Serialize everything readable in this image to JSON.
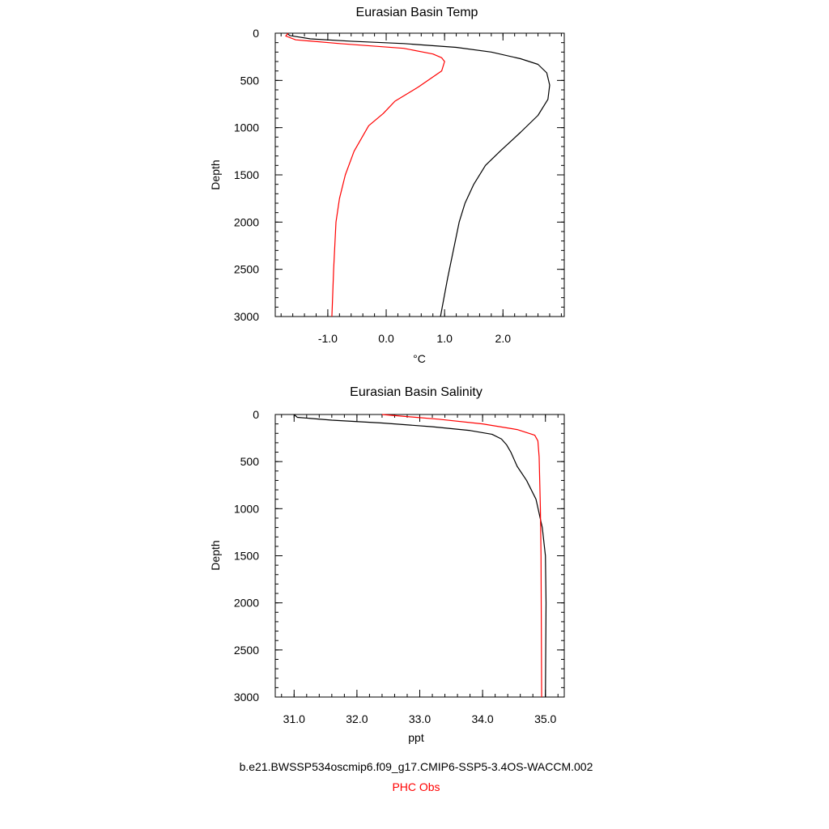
{
  "colors": {
    "model": "#000000",
    "obs": "#ff0000",
    "background": "#ffffff"
  },
  "legend": {
    "model_label": "b.e21.BWSSP534oscmip6.f09_g17.CMIP6-SSP5-3.4OS-WACCM.002",
    "obs_label": "PHC Obs"
  },
  "chart_data": [
    {
      "type": "line",
      "title": "Eurasian Basin Temp",
      "xlabel": "°C",
      "ylabel": "Depth",
      "xlim": [
        -1.9,
        3.05
      ],
      "ylim": [
        3000,
        0
      ],
      "xticks": [
        -1.0,
        0.0,
        1.0,
        2.0
      ],
      "xtick_labels": [
        "-1.0",
        "0.0",
        "1.0",
        "2.0"
      ],
      "xminor_step": 0.2,
      "yticks": [
        0,
        500,
        1000,
        1500,
        2000,
        2500,
        3000
      ],
      "ytick_labels": [
        "0",
        "500",
        "1000",
        "1500",
        "2000",
        "2500",
        "3000"
      ],
      "yminor_step": 100,
      "grid": false,
      "series": [
        {
          "id": "model",
          "points": [
            [
              -1.7,
              0
            ],
            [
              -1.65,
              25
            ],
            [
              -1.3,
              60
            ],
            [
              -0.6,
              85
            ],
            [
              0.3,
              110
            ],
            [
              1.2,
              150
            ],
            [
              1.8,
              200
            ],
            [
              2.3,
              270
            ],
            [
              2.6,
              330
            ],
            [
              2.75,
              420
            ],
            [
              2.8,
              550
            ],
            [
              2.77,
              700
            ],
            [
              2.6,
              870
            ],
            [
              2.3,
              1050
            ],
            [
              1.95,
              1250
            ],
            [
              1.7,
              1400
            ],
            [
              1.5,
              1600
            ],
            [
              1.35,
              1800
            ],
            [
              1.25,
              2000
            ],
            [
              1.15,
              2300
            ],
            [
              1.05,
              2600
            ],
            [
              0.93,
              3000
            ]
          ]
        },
        {
          "id": "obs",
          "points": [
            [
              -1.68,
              0
            ],
            [
              -1.72,
              30
            ],
            [
              -1.55,
              70
            ],
            [
              -0.8,
              110
            ],
            [
              0.3,
              160
            ],
            [
              0.8,
              220
            ],
            [
              0.95,
              260
            ],
            [
              1.0,
              300
            ],
            [
              0.95,
              400
            ],
            [
              0.55,
              570
            ],
            [
              0.15,
              720
            ],
            [
              -0.05,
              850
            ],
            [
              -0.3,
              980
            ],
            [
              -0.55,
              1250
            ],
            [
              -0.7,
              1500
            ],
            [
              -0.8,
              1750
            ],
            [
              -0.86,
              2000
            ],
            [
              -0.9,
              2500
            ],
            [
              -0.93,
              3000
            ]
          ]
        }
      ]
    },
    {
      "type": "line",
      "title": "Eurasian Basin Salinity",
      "xlabel": "ppt",
      "ylabel": "Depth",
      "xlim": [
        30.7,
        35.3
      ],
      "ylim": [
        3000,
        0
      ],
      "xticks": [
        31.0,
        32.0,
        33.0,
        34.0,
        35.0
      ],
      "xtick_labels": [
        "31.0",
        "32.0",
        "33.0",
        "34.0",
        "35.0"
      ],
      "xminor_step": 0.2,
      "yticks": [
        0,
        500,
        1000,
        1500,
        2000,
        2500,
        3000
      ],
      "ytick_labels": [
        "0",
        "500",
        "1000",
        "1500",
        "2000",
        "2500",
        "3000"
      ],
      "yminor_step": 100,
      "grid": false,
      "series": [
        {
          "id": "model",
          "points": [
            [
              31.0,
              0
            ],
            [
              31.05,
              30
            ],
            [
              31.6,
              60
            ],
            [
              32.4,
              90
            ],
            [
              33.2,
              130
            ],
            [
              33.8,
              170
            ],
            [
              34.15,
              210
            ],
            [
              34.3,
              260
            ],
            [
              34.38,
              320
            ],
            [
              34.45,
              400
            ],
            [
              34.55,
              550
            ],
            [
              34.7,
              700
            ],
            [
              34.85,
              900
            ],
            [
              34.95,
              1200
            ],
            [
              35.0,
              1500
            ],
            [
              35.01,
              2000
            ],
            [
              35.0,
              3000
            ]
          ]
        },
        {
          "id": "obs",
          "points": [
            [
              32.4,
              0
            ],
            [
              33.3,
              50
            ],
            [
              34.0,
              100
            ],
            [
              34.55,
              160
            ],
            [
              34.83,
              220
            ],
            [
              34.88,
              280
            ],
            [
              34.9,
              450
            ],
            [
              34.92,
              1000
            ],
            [
              34.93,
              1500
            ],
            [
              34.94,
              3000
            ]
          ]
        }
      ]
    }
  ]
}
